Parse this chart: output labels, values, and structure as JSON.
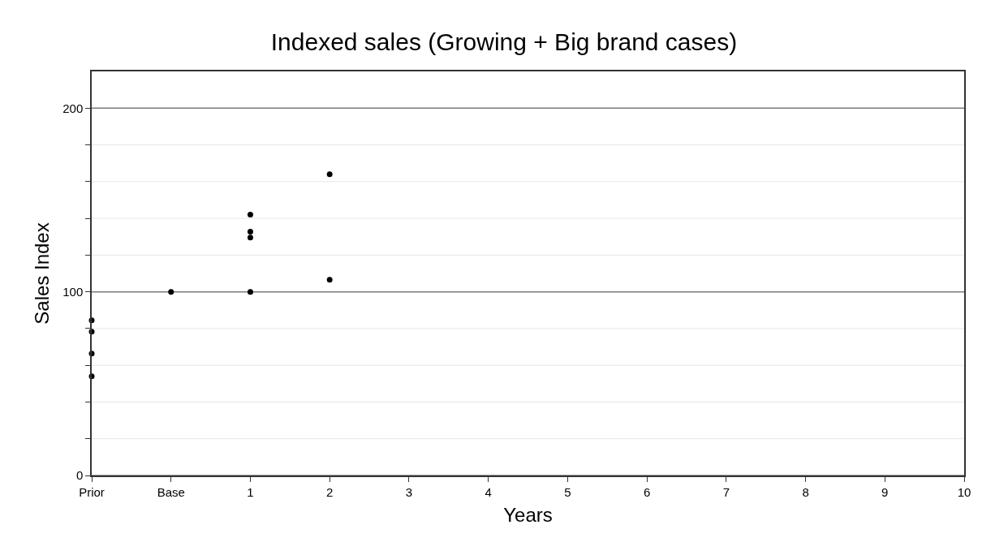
{
  "chart_data": {
    "type": "scatter",
    "title": "Indexed sales (Growing + Big brand cases)",
    "xlabel": "Years",
    "ylabel": "Sales Index",
    "x": [
      -1,
      -1,
      -1,
      -1,
      0,
      1,
      1,
      1,
      1,
      2,
      2
    ],
    "values": [
      84.5,
      78.3,
      66.4,
      54,
      100,
      142,
      132.7,
      129.6,
      100,
      164,
      106.6
    ],
    "color": "#000000",
    "marker": "circle",
    "grid": "y",
    "xlim": [
      -1,
      10
    ],
    "xticks": [
      {
        "value": -1,
        "label": "Prior"
      },
      {
        "value": 0,
        "label": "Base"
      },
      1,
      2,
      3,
      4,
      5,
      6,
      7,
      8,
      9,
      10
    ],
    "ylim": [
      0,
      220
    ],
    "yticks": [
      0,
      {
        "value": 20,
        "label": null
      },
      {
        "value": 40,
        "label": null
      },
      {
        "value": 60,
        "label": null
      },
      {
        "value": 80,
        "label": null
      },
      100,
      {
        "value": 120,
        "label": null
      },
      {
        "value": 140,
        "label": null
      },
      {
        "value": 160,
        "label": null
      },
      {
        "value": 180,
        "label": null
      },
      200
    ]
  }
}
